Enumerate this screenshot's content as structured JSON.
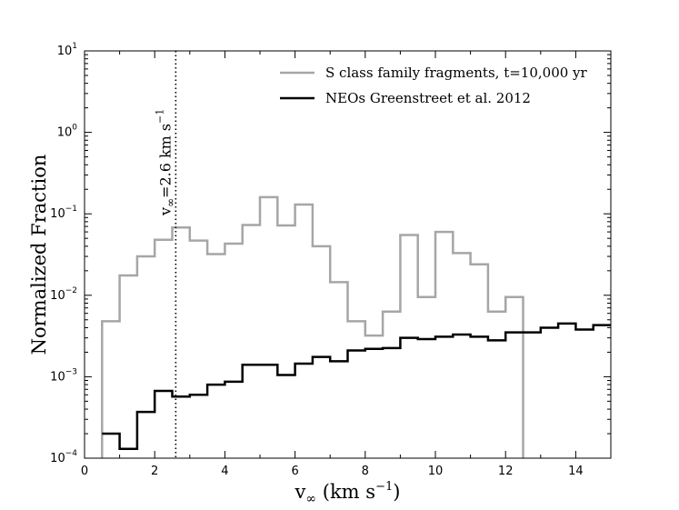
{
  "chart_data": {
    "type": "line",
    "drawstyle": "steps",
    "xlabel": "v∞ (km s⁻¹)",
    "xlabel_main": "v",
    "xlabel_sub": "∞",
    "xlabel_unit": " (km s",
    "xlabel_sup": "−1",
    "xlabel_close": ")",
    "ylabel": "Normalized Fraction",
    "xlim": [
      0,
      15
    ],
    "ylim": [
      0.0001,
      10
    ],
    "yscale": "log",
    "grid": false,
    "legend_position": "top-right",
    "x_ticks": [
      0,
      2,
      4,
      6,
      8,
      10,
      12,
      14
    ],
    "x_tick_labels": [
      "0",
      "2",
      "4",
      "6",
      "8",
      "10",
      "12",
      "14"
    ],
    "y_ticks": [
      0.0001,
      0.001,
      0.01,
      0.1,
      1,
      10
    ],
    "y_tick_labels": [
      {
        "base": "10",
        "exp": "−4"
      },
      {
        "base": "10",
        "exp": "−3"
      },
      {
        "base": "10",
        "exp": "−2"
      },
      {
        "base": "10",
        "exp": "−1"
      },
      {
        "base": "10",
        "exp": "0"
      },
      {
        "base": "10",
        "exp": "1"
      }
    ],
    "series": [
      {
        "name": "S class family fragments, t=10,000 yr",
        "color": "#a6a6a6",
        "bin_edges": [
          0.5,
          1.0,
          1.5,
          2.0,
          2.5,
          3.0,
          3.5,
          4.0,
          4.5,
          5.0,
          5.5,
          6.0,
          6.5,
          7.0,
          7.5,
          8.0,
          8.5,
          9.0,
          9.5,
          10.0,
          10.5,
          11.0,
          11.5,
          12.0,
          12.5
        ],
        "values": [
          0.0048,
          0.0175,
          0.03,
          0.048,
          0.068,
          0.047,
          0.032,
          0.043,
          0.073,
          0.16,
          0.072,
          0.13,
          0.04,
          0.0145,
          0.0048,
          0.0032,
          0.0063,
          0.055,
          0.0095,
          0.06,
          0.033,
          0.024,
          0.0063,
          0.0095
        ],
        "drop_to_axis": true
      },
      {
        "name": "NEOs Greenstreet et al. 2012",
        "color": "#000000",
        "bin_edges": [
          0.5,
          1.0,
          1.5,
          2.0,
          2.5,
          3.0,
          3.5,
          4.0,
          4.5,
          5.0,
          5.5,
          6.0,
          6.5,
          7.0,
          7.5,
          8.0,
          8.5,
          9.0,
          9.5,
          10.0,
          10.5,
          11.0,
          11.5,
          12.0,
          12.5,
          13.0,
          13.5,
          14.0,
          14.5,
          15.0
        ],
        "values": [
          0.0002,
          0.00013,
          0.00037,
          0.00067,
          0.00057,
          0.0006,
          0.0008,
          0.00087,
          0.0014,
          0.0014,
          0.00105,
          0.00145,
          0.00175,
          0.00155,
          0.0021,
          0.0022,
          0.00225,
          0.003,
          0.0029,
          0.0031,
          0.0033,
          0.0031,
          0.0028,
          0.0035,
          0.0035,
          0.004,
          0.0045,
          0.0038,
          0.0043
        ],
        "drop_to_axis": false
      }
    ],
    "annotations": [
      {
        "type": "vline",
        "x": 2.6,
        "style": "dotted",
        "color": "#000000",
        "label_main": "v",
        "label_sub": "∞",
        "label_rest": "=2.6 km s",
        "label_sup": "−1"
      }
    ]
  }
}
